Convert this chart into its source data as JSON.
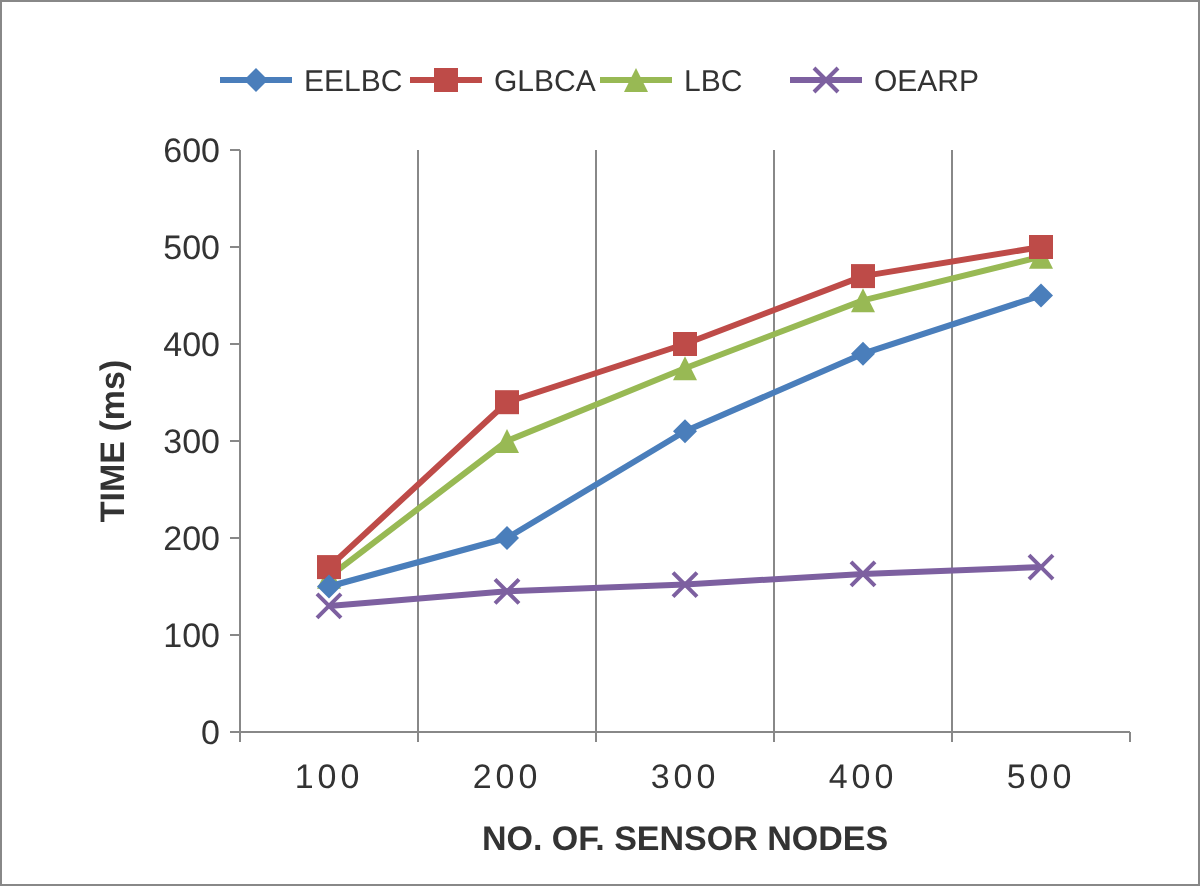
{
  "chart_data": {
    "type": "line",
    "xlabel": "NO. OF. SENSOR NODES",
    "ylabel": "TIME (ms)",
    "categories": [
      "100",
      "200",
      "300",
      "400",
      "500"
    ],
    "series": [
      {
        "name": "EELBC",
        "color": "#4a7ebb",
        "marker": "diamond",
        "values": [
          150,
          200,
          310,
          390,
          450
        ]
      },
      {
        "name": "GLBCA",
        "color": "#be4b48",
        "marker": "square",
        "values": [
          170,
          340,
          400,
          470,
          500
        ]
      },
      {
        "name": "LBC",
        "color": "#98b954",
        "marker": "triangle",
        "values": [
          160,
          300,
          375,
          445,
          490
        ]
      },
      {
        "name": "OEARP",
        "color": "#7d60a0",
        "marker": "cross",
        "values": [
          130,
          145,
          152,
          163,
          170
        ]
      }
    ],
    "ylim": [
      0,
      600
    ],
    "yticks": [
      0,
      100,
      200,
      300,
      400,
      500,
      600
    ],
    "grid": "x",
    "legend": "top"
  }
}
